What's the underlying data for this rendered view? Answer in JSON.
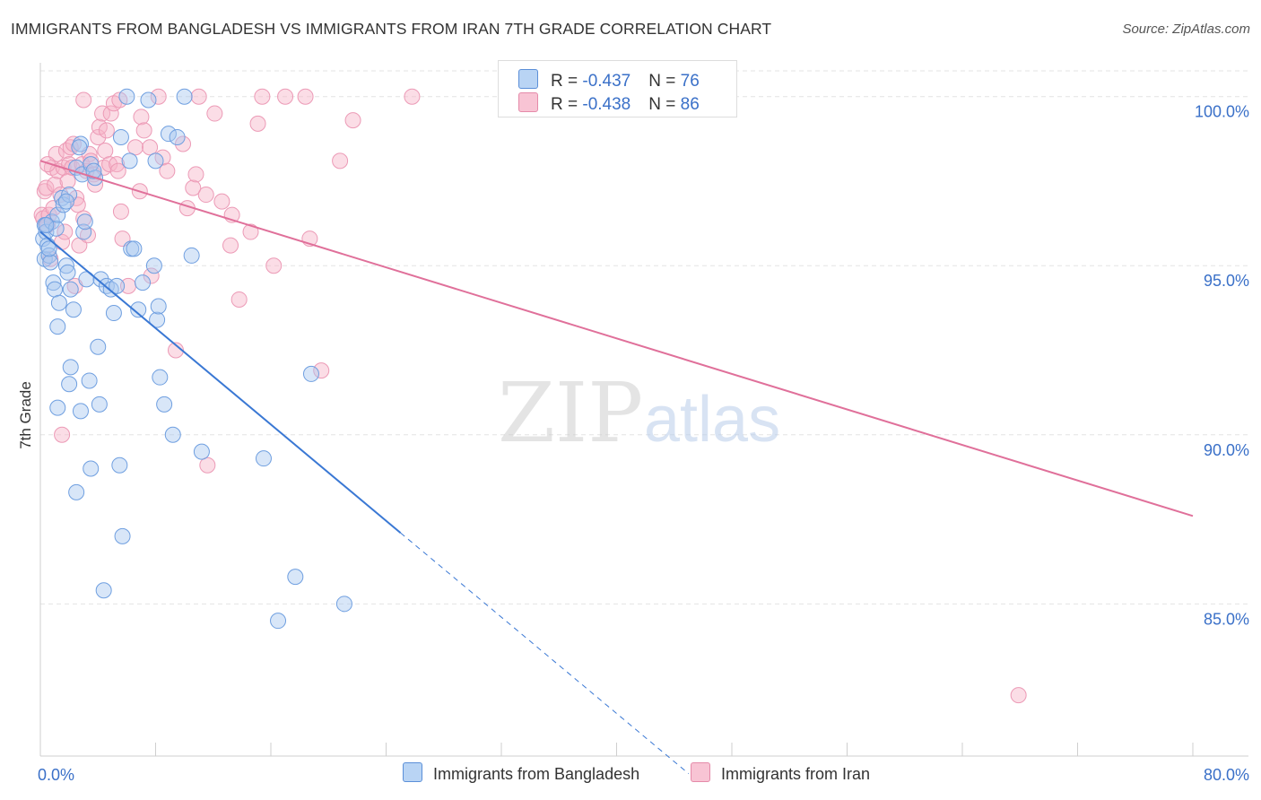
{
  "title": "IMMIGRANTS FROM BANGLADESH VS IMMIGRANTS FROM IRAN 7TH GRADE CORRELATION CHART",
  "source": "Source: ZipAtlas.com",
  "watermark": {
    "zip": "ZIP",
    "atlas": "atlas"
  },
  "colors": {
    "blue": "#3a78d4",
    "blue_fill": "#a8c8ef",
    "pink": "#e0709a",
    "pink_fill": "#f6b4c8",
    "grid": "#e3e3e3",
    "axis_text": "#3a70c8"
  },
  "legend": {
    "rows": [
      {
        "r_label": "R = ",
        "r_value": "-0.437",
        "n_label": "N = ",
        "n_value": "76"
      },
      {
        "r_label": "R = ",
        "r_value": "-0.438",
        "n_label": "N = ",
        "n_value": "86"
      }
    ]
  },
  "bottom_legend": [
    "Immigrants from Bangladesh",
    "Immigrants from Iran"
  ],
  "chart_data": {
    "type": "scatter",
    "title": "IMMIGRANTS FROM BANGLADESH VS IMMIGRANTS FROM IRAN 7TH GRADE CORRELATION CHART",
    "xlabel": "",
    "ylabel": "7th Grade",
    "xlim": [
      0,
      80
    ],
    "ylim": [
      80.5,
      101.0
    ],
    "x_tick_labels": [
      "0.0%",
      "80.0%"
    ],
    "y_ticks": [
      85,
      90,
      95,
      100
    ],
    "y_tick_labels": [
      "85.0%",
      "90.0%",
      "95.0%",
      "100.0%"
    ],
    "series": [
      {
        "name": "Immigrants from Bangladesh",
        "r": -0.437,
        "n": 76,
        "trend": {
          "x0": 0.0,
          "y0": 96.0,
          "x1": 25.0,
          "y1": 87.1,
          "dash_to_x": 45.0
        },
        "points": [
          [
            0.2,
            95.8
          ],
          [
            0.3,
            96.2
          ],
          [
            0.3,
            95.2
          ],
          [
            0.4,
            96.0
          ],
          [
            0.5,
            95.6
          ],
          [
            0.6,
            95.3
          ],
          [
            0.7,
            95.1
          ],
          [
            0.8,
            96.3
          ],
          [
            0.9,
            94.5
          ],
          [
            1.0,
            94.3
          ],
          [
            1.1,
            96.1
          ],
          [
            1.2,
            96.5
          ],
          [
            1.2,
            93.2
          ],
          [
            1.3,
            93.9
          ],
          [
            1.5,
            97.0
          ],
          [
            1.6,
            96.8
          ],
          [
            1.8,
            95.0
          ],
          [
            1.9,
            94.8
          ],
          [
            2.0,
            97.1
          ],
          [
            2.1,
            94.3
          ],
          [
            2.3,
            93.7
          ],
          [
            2.5,
            97.9
          ],
          [
            2.8,
            98.6
          ],
          [
            2.9,
            97.7
          ],
          [
            3.0,
            96.0
          ],
          [
            3.1,
            96.3
          ],
          [
            3.2,
            94.6
          ],
          [
            3.5,
            98.0
          ],
          [
            3.8,
            97.6
          ],
          [
            4.2,
            94.6
          ],
          [
            4.6,
            94.4
          ],
          [
            4.9,
            94.3
          ],
          [
            5.1,
            93.6
          ],
          [
            5.3,
            94.4
          ],
          [
            5.6,
            98.8
          ],
          [
            6.0,
            100.0
          ],
          [
            6.2,
            98.1
          ],
          [
            6.3,
            95.5
          ],
          [
            6.5,
            95.5
          ],
          [
            6.8,
            93.7
          ],
          [
            7.1,
            94.5
          ],
          [
            7.5,
            99.9
          ],
          [
            7.9,
            95.0
          ],
          [
            8.0,
            98.1
          ],
          [
            8.1,
            93.4
          ],
          [
            8.2,
            93.8
          ],
          [
            8.3,
            91.7
          ],
          [
            8.6,
            90.9
          ],
          [
            8.9,
            98.9
          ],
          [
            9.2,
            90.0
          ],
          [
            9.5,
            98.8
          ],
          [
            10.0,
            100.0
          ],
          [
            10.5,
            95.3
          ],
          [
            11.2,
            89.5
          ],
          [
            1.2,
            90.8
          ],
          [
            2.0,
            91.5
          ],
          [
            2.1,
            92.0
          ],
          [
            2.5,
            88.3
          ],
          [
            2.8,
            90.7
          ],
          [
            3.4,
            91.6
          ],
          [
            3.5,
            89.0
          ],
          [
            4.0,
            92.6
          ],
          [
            4.1,
            90.9
          ],
          [
            4.4,
            85.4
          ],
          [
            5.5,
            89.1
          ],
          [
            5.7,
            87.0
          ],
          [
            15.5,
            89.3
          ],
          [
            16.5,
            84.5
          ],
          [
            17.7,
            85.8
          ],
          [
            18.8,
            91.8
          ],
          [
            21.1,
            85.0
          ],
          [
            0.4,
            96.2
          ],
          [
            0.6,
            95.5
          ],
          [
            1.8,
            96.9
          ],
          [
            2.7,
            98.5
          ],
          [
            3.7,
            97.8
          ]
        ]
      },
      {
        "name": "Immigrants from Iran",
        "r": -0.438,
        "n": 86,
        "trend": {
          "x0": 0.0,
          "y0": 98.1,
          "x1": 80.0,
          "y1": 87.6
        },
        "points": [
          [
            0.1,
            96.5
          ],
          [
            0.2,
            96.4
          ],
          [
            0.3,
            97.2
          ],
          [
            0.4,
            97.3
          ],
          [
            0.5,
            96.2
          ],
          [
            0.6,
            96.5
          ],
          [
            0.7,
            95.2
          ],
          [
            0.8,
            97.9
          ],
          [
            0.9,
            96.7
          ],
          [
            1.0,
            97.4
          ],
          [
            1.1,
            98.3
          ],
          [
            1.2,
            97.8
          ],
          [
            1.4,
            97.1
          ],
          [
            1.5,
            95.7
          ],
          [
            1.6,
            97.9
          ],
          [
            1.7,
            96.0
          ],
          [
            1.8,
            98.4
          ],
          [
            1.9,
            97.5
          ],
          [
            2.0,
            98.0
          ],
          [
            2.1,
            98.5
          ],
          [
            2.2,
            97.9
          ],
          [
            2.3,
            98.6
          ],
          [
            2.4,
            94.4
          ],
          [
            2.5,
            97.0
          ],
          [
            2.6,
            96.8
          ],
          [
            2.7,
            95.6
          ],
          [
            2.9,
            98.0
          ],
          [
            3.0,
            96.4
          ],
          [
            3.2,
            97.8
          ],
          [
            3.3,
            95.9
          ],
          [
            3.4,
            98.3
          ],
          [
            3.5,
            98.1
          ],
          [
            3.7,
            97.7
          ],
          [
            3.8,
            97.4
          ],
          [
            4.0,
            98.8
          ],
          [
            4.1,
            99.1
          ],
          [
            4.3,
            99.5
          ],
          [
            4.4,
            97.9
          ],
          [
            4.5,
            98.4
          ],
          [
            4.6,
            99.0
          ],
          [
            4.8,
            98.0
          ],
          [
            4.9,
            99.5
          ],
          [
            5.1,
            99.8
          ],
          [
            5.3,
            98.0
          ],
          [
            5.4,
            97.8
          ],
          [
            5.5,
            99.9
          ],
          [
            5.6,
            96.6
          ],
          [
            5.7,
            95.8
          ],
          [
            6.1,
            94.4
          ],
          [
            6.6,
            98.5
          ],
          [
            6.9,
            97.2
          ],
          [
            7.0,
            99.4
          ],
          [
            7.2,
            99.0
          ],
          [
            7.6,
            98.5
          ],
          [
            7.7,
            94.7
          ],
          [
            8.2,
            100.0
          ],
          [
            8.5,
            98.2
          ],
          [
            8.8,
            97.8
          ],
          [
            9.4,
            92.5
          ],
          [
            9.9,
            98.6
          ],
          [
            10.2,
            96.7
          ],
          [
            10.6,
            97.3
          ],
          [
            10.8,
            97.7
          ],
          [
            11.0,
            100.0
          ],
          [
            11.5,
            97.1
          ],
          [
            11.6,
            89.1
          ],
          [
            12.1,
            99.5
          ],
          [
            12.6,
            96.9
          ],
          [
            13.2,
            95.6
          ],
          [
            13.3,
            96.5
          ],
          [
            13.8,
            94.0
          ],
          [
            14.6,
            96.0
          ],
          [
            15.1,
            99.2
          ],
          [
            15.4,
            100.0
          ],
          [
            16.2,
            95.0
          ],
          [
            17.0,
            100.0
          ],
          [
            18.4,
            100.0
          ],
          [
            18.7,
            95.8
          ],
          [
            19.5,
            91.9
          ],
          [
            20.8,
            98.1
          ],
          [
            21.7,
            99.3
          ],
          [
            25.8,
            100.0
          ],
          [
            67.9,
            82.3
          ],
          [
            1.5,
            90.0
          ],
          [
            0.5,
            98.0
          ],
          [
            3.0,
            99.9
          ]
        ]
      }
    ]
  }
}
